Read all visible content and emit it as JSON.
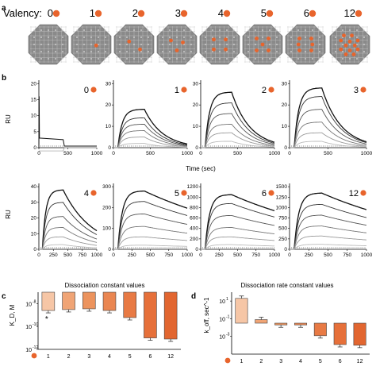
{
  "colors": {
    "accent": "#e8642c",
    "accent_light": "#f5b48a",
    "grid_bg": "#8a8a8a",
    "grid_cell": "#9c9c9c",
    "grid_line": "#c8c8c8",
    "curve_dark": "#111111",
    "curve_mid": "#777777",
    "curve_light": "#bbbbbb"
  },
  "panel_a": {
    "label": "a",
    "valency_label": "Valency:",
    "valencies": [
      "0",
      "1",
      "2",
      "3",
      "4",
      "5",
      "6",
      "12"
    ]
  },
  "panel_b": {
    "label": "b",
    "ylabel": "RU",
    "xlabel": "Time (sec)",
    "xticks": [
      "0",
      "500",
      "1000"
    ],
    "xticks_bottom": [
      "0",
      "250",
      "500",
      "750",
      "1000"
    ],
    "subplots": [
      {
        "valency": "0",
        "yticks": [
          "0",
          "5",
          "10",
          "15",
          "20"
        ]
      },
      {
        "valency": "1",
        "yticks": [],
        "peaks": [
          18,
          14,
          11,
          8,
          5,
          2
        ]
      },
      {
        "valency": "2",
        "yticks": [],
        "peaks": [
          26,
          21,
          16,
          11,
          7,
          3
        ]
      },
      {
        "valency": "3",
        "yticks": [],
        "peaks": [
          28,
          24,
          18,
          12,
          7,
          3
        ]
      },
      {
        "valency": "4",
        "yticks": [
          "0",
          "10",
          "20",
          "30",
          "40"
        ],
        "peaks": [
          38,
          30,
          21,
          14,
          8,
          3
        ]
      },
      {
        "valency": "5",
        "yticks": [
          "0",
          "100",
          "200",
          "300"
        ],
        "peaks": [
          280,
          230,
          170,
          110,
          60,
          20
        ]
      },
      {
        "valency": "6",
        "yticks": [
          "0",
          "200",
          "400",
          "600",
          "800",
          "1000",
          "1200"
        ],
        "peaks": [
          1050,
          880,
          650,
          420,
          240,
          90
        ]
      },
      {
        "valency": "12",
        "yticks": [
          "0",
          "250",
          "500",
          "750",
          "1000",
          "1250",
          "1500"
        ],
        "peaks": [
          1350,
          1080,
          820,
          560,
          320,
          120
        ]
      }
    ]
  },
  "chart_data": [
    {
      "type": "bar",
      "panel": "c",
      "title": "Dissociation constant values",
      "ylabel": "K_D, M",
      "yscale": "log",
      "ylim": [
        1e-12,
        1e-07
      ],
      "yticks": [
        "10",
        "10",
        "10"
      ],
      "ytick_exponents": [
        "-8",
        "-10",
        "-12"
      ],
      "categories": [
        "1",
        "2",
        "3",
        "4",
        "5",
        "6",
        "12"
      ],
      "values": [
        2.5e-09,
        3e-09,
        3.5e-09,
        2.5e-09,
        6e-10,
        1e-11,
        8e-12
      ],
      "annotation": "*"
    },
    {
      "type": "bar",
      "panel": "d",
      "title": "Dissociation rate constant values",
      "ylabel": "k_off, sec^-1",
      "yscale": "log",
      "ylim": [
        1e-05,
        100
      ],
      "yticks": [
        "10",
        "10",
        "10"
      ],
      "ytick_exponents": [
        "1",
        "-1",
        "-3"
      ],
      "categories": [
        "1",
        "2",
        "3",
        "4",
        "5",
        "6",
        "12"
      ],
      "values": [
        20,
        0.08,
        0.02,
        0.02,
        0.0012,
        0.00012,
        0.0001
      ]
    }
  ]
}
